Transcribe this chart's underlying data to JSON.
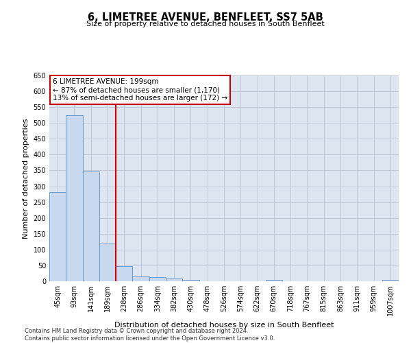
{
  "title": "6, LIMETREE AVENUE, BENFLEET, SS7 5AB",
  "subtitle": "Size of property relative to detached houses in South Benfleet",
  "xlabel": "Distribution of detached houses by size in South Benfleet",
  "ylabel": "Number of detached properties",
  "footer_line1": "Contains HM Land Registry data © Crown copyright and database right 2024.",
  "footer_line2": "Contains public sector information licensed under the Open Government Licence v3.0.",
  "categories": [
    "45sqm",
    "93sqm",
    "141sqm",
    "189sqm",
    "238sqm",
    "286sqm",
    "334sqm",
    "382sqm",
    "430sqm",
    "478sqm",
    "526sqm",
    "574sqm",
    "622sqm",
    "670sqm",
    "718sqm",
    "767sqm",
    "815sqm",
    "863sqm",
    "911sqm",
    "959sqm",
    "1007sqm"
  ],
  "values": [
    281,
    524,
    346,
    120,
    47,
    16,
    12,
    8,
    5,
    0,
    0,
    0,
    0,
    5,
    0,
    0,
    0,
    0,
    0,
    0,
    5
  ],
  "bar_color": "#c8d8ee",
  "bar_edge_color": "#6699cc",
  "grid_color": "#c0c8d8",
  "background_color": "#dde5f0",
  "annotation_line1": "6 LIMETREE AVENUE: 199sqm",
  "annotation_line2": "← 87% of detached houses are smaller (1,170)",
  "annotation_line3": "13% of semi-detached houses are larger (172) →",
  "vline_color": "#cc0000",
  "annotation_box_color": "#cc0000",
  "ylim": [
    0,
    650
  ],
  "yticks": [
    0,
    50,
    100,
    150,
    200,
    250,
    300,
    350,
    400,
    450,
    500,
    550,
    600,
    650
  ],
  "title_fontsize": 10.5,
  "subtitle_fontsize": 8,
  "axis_label_fontsize": 8,
  "tick_fontsize": 7,
  "annotation_fontsize": 7.5,
  "footer_fontsize": 6
}
